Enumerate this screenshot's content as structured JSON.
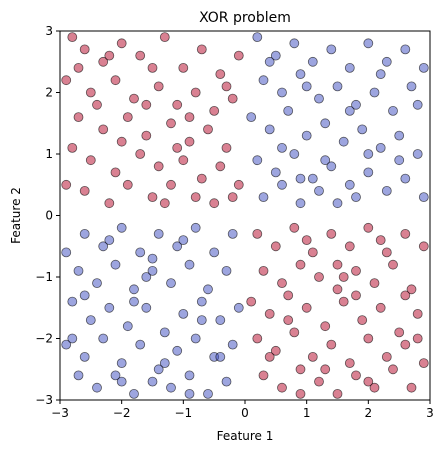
{
  "chart_data": {
    "type": "scatter",
    "title": "XOR problem",
    "xlabel": "Feature 1",
    "ylabel": "Feature 2",
    "xlim": [
      -3,
      3
    ],
    "ylim": [
      -3,
      3
    ],
    "xticks": [
      "−3",
      "−2",
      "−1",
      "0",
      "1",
      "2",
      "3"
    ],
    "yticks": [
      "−3",
      "−2",
      "−1",
      "0",
      "1",
      "2",
      "3"
    ],
    "grid": false,
    "legend": "none",
    "colors": {
      "class_a": "#b40426",
      "class_b": "#3b4cc0",
      "edge": "#000000"
    },
    "series": [
      {
        "points": [
          [
            -2.8,
            2.9
          ],
          [
            -2.6,
            2.7
          ],
          [
            -2.3,
            2.5
          ],
          [
            -2.0,
            2.8
          ],
          [
            -1.7,
            2.6
          ],
          [
            -1.3,
            2.9
          ],
          [
            -1.0,
            2.4
          ],
          [
            -0.7,
            2.7
          ],
          [
            -0.4,
            2.3
          ],
          [
            -0.1,
            2.6
          ],
          [
            -2.9,
            2.2
          ],
          [
            -2.5,
            2.0
          ],
          [
            -2.1,
            2.2
          ],
          [
            -1.8,
            1.9
          ],
          [
            -1.4,
            2.1
          ],
          [
            -1.1,
            1.8
          ],
          [
            -0.8,
            2.0
          ],
          [
            -0.5,
            1.7
          ],
          [
            -0.2,
            1.9
          ],
          [
            -2.7,
            1.6
          ],
          [
            -2.3,
            1.4
          ],
          [
            -1.9,
            1.6
          ],
          [
            -1.6,
            1.3
          ],
          [
            -1.2,
            1.5
          ],
          [
            -0.9,
            1.2
          ],
          [
            -0.6,
            1.4
          ],
          [
            -0.3,
            1.1
          ],
          [
            -2.8,
            1.1
          ],
          [
            -2.5,
            0.9
          ],
          [
            -2.1,
            0.7
          ],
          [
            -1.7,
            1.0
          ],
          [
            -1.4,
            0.8
          ],
          [
            -1.0,
            0.9
          ],
          [
            -0.7,
            0.6
          ],
          [
            -0.4,
            0.8
          ],
          [
            -0.1,
            0.5
          ],
          [
            -2.9,
            0.5
          ],
          [
            -2.6,
            0.4
          ],
          [
            -2.2,
            0.2
          ],
          [
            -1.9,
            0.5
          ],
          [
            -1.5,
            0.3
          ],
          [
            -1.2,
            0.5
          ],
          [
            -0.8,
            0.3
          ],
          [
            -0.5,
            0.2
          ],
          [
            -0.2,
            0.3
          ],
          [
            -2.4,
            1.8
          ],
          [
            -1.5,
            2.4
          ],
          [
            -0.9,
            1.6
          ],
          [
            -2.0,
            1.2
          ],
          [
            -1.1,
            1.1
          ],
          [
            -2.7,
            2.4
          ],
          [
            -1.6,
            1.8
          ],
          [
            -0.3,
            2.1
          ],
          [
            -2.2,
            2.6
          ],
          [
            -1.3,
            0.2
          ],
          [
            0.2,
            -0.3
          ],
          [
            0.5,
            -0.5
          ],
          [
            0.8,
            -0.2
          ],
          [
            1.1,
            -0.6
          ],
          [
            1.4,
            -0.3
          ],
          [
            1.7,
            -0.5
          ],
          [
            2.0,
            -0.2
          ],
          [
            2.3,
            -0.6
          ],
          [
            2.6,
            -0.3
          ],
          [
            2.9,
            -0.5
          ],
          [
            0.3,
            -0.9
          ],
          [
            0.6,
            -1.1
          ],
          [
            0.9,
            -0.8
          ],
          [
            1.2,
            -1.0
          ],
          [
            1.5,
            -1.2
          ],
          [
            1.8,
            -0.9
          ],
          [
            2.1,
            -1.1
          ],
          [
            2.4,
            -0.8
          ],
          [
            2.7,
            -1.2
          ],
          [
            0.1,
            -1.4
          ],
          [
            0.4,
            -1.6
          ],
          [
            0.7,
            -1.3
          ],
          [
            1.0,
            -1.5
          ],
          [
            1.3,
            -1.8
          ],
          [
            1.6,
            -1.4
          ],
          [
            1.9,
            -1.7
          ],
          [
            2.2,
            -1.5
          ],
          [
            2.5,
            -1.9
          ],
          [
            2.8,
            -1.6
          ],
          [
            0.2,
            -2.0
          ],
          [
            0.5,
            -2.2
          ],
          [
            0.8,
            -1.9
          ],
          [
            1.1,
            -2.3
          ],
          [
            1.4,
            -2.1
          ],
          [
            1.7,
            -2.4
          ],
          [
            2.0,
            -2.0
          ],
          [
            2.3,
            -2.3
          ],
          [
            2.6,
            -2.1
          ],
          [
            2.9,
            -2.4
          ],
          [
            0.3,
            -2.6
          ],
          [
            0.6,
            -2.8
          ],
          [
            0.9,
            -2.5
          ],
          [
            1.2,
            -2.7
          ],
          [
            1.5,
            -2.9
          ],
          [
            1.8,
            -2.6
          ],
          [
            2.1,
            -2.8
          ],
          [
            2.4,
            -2.5
          ],
          [
            2.7,
            -2.8
          ],
          [
            1.0,
            -0.4
          ],
          [
            2.2,
            -0.4
          ],
          [
            0.7,
            -1.7
          ],
          [
            1.6,
            -1.0
          ],
          [
            2.6,
            -1.3
          ],
          [
            1.3,
            -2.5
          ],
          [
            2.0,
            -2.7
          ],
          [
            0.4,
            -2.3
          ],
          [
            2.8,
            -2.0
          ],
          [
            1.8,
            -1.3
          ],
          [
            0.9,
            -2.9
          ],
          [
            1.5,
            -0.8
          ]
        ]
      },
      {
        "points": [
          [
            0.2,
            2.9
          ],
          [
            0.5,
            2.6
          ],
          [
            0.8,
            2.8
          ],
          [
            1.1,
            2.5
          ],
          [
            1.4,
            2.7
          ],
          [
            1.7,
            2.4
          ],
          [
            2.0,
            2.8
          ],
          [
            2.3,
            2.5
          ],
          [
            2.6,
            2.7
          ],
          [
            2.9,
            2.4
          ],
          [
            0.3,
            2.2
          ],
          [
            0.6,
            2.0
          ],
          [
            0.9,
            2.3
          ],
          [
            1.2,
            1.9
          ],
          [
            1.5,
            2.1
          ],
          [
            1.8,
            1.8
          ],
          [
            2.1,
            2.0
          ],
          [
            2.4,
            1.7
          ],
          [
            2.7,
            2.1
          ],
          [
            0.1,
            1.6
          ],
          [
            0.4,
            1.4
          ],
          [
            0.7,
            1.7
          ],
          [
            1.0,
            1.3
          ],
          [
            1.3,
            1.5
          ],
          [
            1.6,
            1.2
          ],
          [
            1.9,
            1.4
          ],
          [
            2.2,
            1.1
          ],
          [
            2.5,
            1.3
          ],
          [
            2.8,
            1.0
          ],
          [
            0.2,
            0.9
          ],
          [
            0.5,
            0.7
          ],
          [
            0.8,
            1.0
          ],
          [
            1.1,
            0.6
          ],
          [
            1.4,
            0.8
          ],
          [
            1.7,
            0.5
          ],
          [
            2.0,
            0.7
          ],
          [
            2.3,
            0.4
          ],
          [
            2.6,
            0.6
          ],
          [
            2.9,
            0.3
          ],
          [
            0.3,
            0.3
          ],
          [
            0.6,
            0.5
          ],
          [
            0.9,
            0.2
          ],
          [
            1.2,
            0.4
          ],
          [
            1.5,
            0.2
          ],
          [
            1.8,
            0.3
          ],
          [
            1.0,
            2.1
          ],
          [
            2.2,
            2.3
          ],
          [
            0.6,
            1.1
          ],
          [
            1.7,
            1.7
          ],
          [
            2.5,
            0.9
          ],
          [
            1.3,
            0.9
          ],
          [
            0.4,
            2.5
          ],
          [
            2.8,
            1.8
          ],
          [
            0.9,
            0.6
          ],
          [
            2.0,
            1.0
          ],
          [
            -0.2,
            -0.3
          ],
          [
            -0.5,
            -0.6
          ],
          [
            -0.8,
            -0.2
          ],
          [
            -1.1,
            -0.5
          ],
          [
            -1.4,
            -0.3
          ],
          [
            -1.7,
            -0.6
          ],
          [
            -2.0,
            -0.2
          ],
          [
            -2.3,
            -0.5
          ],
          [
            -2.6,
            -0.3
          ],
          [
            -2.9,
            -0.6
          ],
          [
            -0.3,
            -0.9
          ],
          [
            -0.6,
            -1.2
          ],
          [
            -0.9,
            -0.8
          ],
          [
            -1.2,
            -1.1
          ],
          [
            -1.5,
            -0.9
          ],
          [
            -1.8,
            -1.2
          ],
          [
            -2.1,
            -0.8
          ],
          [
            -2.4,
            -1.1
          ],
          [
            -2.7,
            -0.9
          ],
          [
            -0.1,
            -1.5
          ],
          [
            -0.4,
            -1.7
          ],
          [
            -0.7,
            -1.4
          ],
          [
            -1.0,
            -1.6
          ],
          [
            -1.3,
            -1.9
          ],
          [
            -1.6,
            -1.5
          ],
          [
            -1.9,
            -1.8
          ],
          [
            -2.2,
            -1.5
          ],
          [
            -2.5,
            -1.7
          ],
          [
            -2.8,
            -1.4
          ],
          [
            -0.2,
            -2.1
          ],
          [
            -0.5,
            -2.3
          ],
          [
            -0.8,
            -2.0
          ],
          [
            -1.1,
            -2.2
          ],
          [
            -1.4,
            -2.5
          ],
          [
            -1.7,
            -2.1
          ],
          [
            -2.0,
            -2.4
          ],
          [
            -2.3,
            -2.0
          ],
          [
            -2.6,
            -2.3
          ],
          [
            -2.9,
            -2.1
          ],
          [
            -0.3,
            -2.7
          ],
          [
            -0.6,
            -2.9
          ],
          [
            -0.9,
            -2.6
          ],
          [
            -1.2,
            -2.8
          ],
          [
            -1.5,
            -2.7
          ],
          [
            -1.8,
            -2.9
          ],
          [
            -2.1,
            -2.6
          ],
          [
            -2.4,
            -2.8
          ],
          [
            -2.7,
            -2.6
          ],
          [
            -1.0,
            -0.4
          ],
          [
            -2.2,
            -0.4
          ],
          [
            -0.7,
            -1.7
          ],
          [
            -1.6,
            -1.0
          ],
          [
            -2.6,
            -1.3
          ],
          [
            -1.3,
            -2.4
          ],
          [
            -2.0,
            -2.7
          ],
          [
            -0.4,
            -2.3
          ],
          [
            -2.8,
            -2.0
          ],
          [
            -1.8,
            -1.4
          ],
          [
            -0.9,
            -2.9
          ],
          [
            -1.5,
            -0.7
          ]
        ]
      }
    ]
  }
}
